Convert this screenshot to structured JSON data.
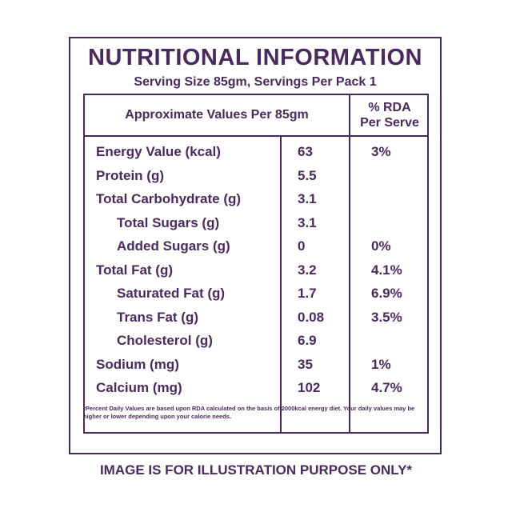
{
  "panel": {
    "title": "NUTRITIONAL INFORMATION",
    "subtitle": "Serving Size 85gm, Servings Per Pack 1"
  },
  "table": {
    "header_left": "Approximate Values Per 85gm",
    "header_right_line1": "% RDA",
    "header_right_line2": "Per Serve",
    "rows": [
      {
        "name": "Energy Value (kcal)",
        "value": "63",
        "rda": "3%"
      },
      {
        "name": "Protein (g)",
        "value": "5.5",
        "rda": ""
      },
      {
        "name": "Total Carbohydrate (g)",
        "value": "3.1",
        "rda": ""
      },
      {
        "name": "Total Sugars (g)",
        "value": "3.1",
        "rda": ""
      },
      {
        "name": "Added Sugars (g)",
        "value": "0",
        "rda": "0%"
      },
      {
        "name": "Total Fat (g)",
        "value": "3.2",
        "rda": "4.1%"
      },
      {
        "name": "Saturated Fat (g)",
        "value": "1.7",
        "rda": "6.9%"
      },
      {
        "name": "Trans Fat (g)",
        "value": "0.08",
        "rda": "3.5%"
      },
      {
        "name": "Cholesterol (g)",
        "value": "6.9",
        "rda": ""
      },
      {
        "name": "Sodium (mg)",
        "value": "35",
        "rda": "1%"
      },
      {
        "name": "Calcium (mg)",
        "value": "102",
        "rda": "4.7%"
      }
    ]
  },
  "footnote": "*Percent Daily Values are based upon RDA calculated on the basis of 2000kcal energy diet. Your daily values may be higher or lower depending upon your calorie needs.",
  "disclaimer": "IMAGE IS FOR ILLUSTRATION PURPOSE ONLY*",
  "colors": {
    "primary": "#4a2a5e",
    "background": "#ffffff"
  }
}
